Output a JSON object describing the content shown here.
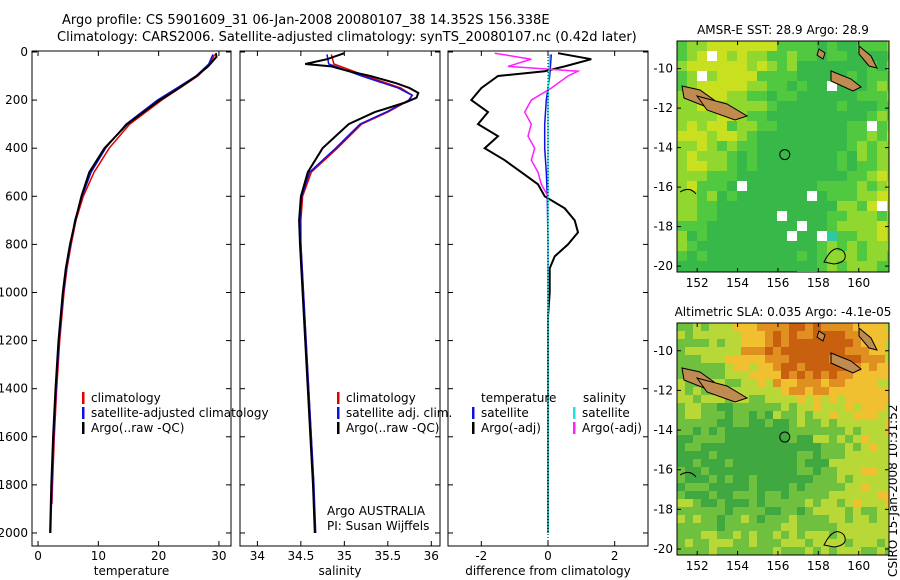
{
  "header": {
    "title_line1": "Argo profile: CS 5901609_31 06-Jan-2008 20080107_38 14.352S 156.338E",
    "title_line2": "Climatology: CARS2006. Satellite-adjusted climatology: synTS_20080107.nc (0.42d later)"
  },
  "footer": {
    "stamp": "CSIRO 15-Jan-2008 10:31:52"
  },
  "colors": {
    "climatology": "#e00000",
    "satellite": "#1010e0",
    "argo": "#000000",
    "salinity_satellite": "#20e0e0",
    "salinity_argo": "#ff20ff"
  },
  "chart_data": [
    {
      "type": "line",
      "xlabel": "temperature",
      "xlim": [
        -1,
        32
      ],
      "xticks": [
        0,
        10,
        20,
        30
      ],
      "ylim": [
        2050,
        0
      ],
      "yticks": [
        0,
        200,
        400,
        600,
        800,
        1000,
        1200,
        1400,
        1600,
        1800,
        2000
      ],
      "legend": [
        "climatology",
        "satellite-adjusted climatology",
        "Argo(..raw -QC)"
      ],
      "series": [
        {
          "name": "climatology",
          "color": "#e00000",
          "depth": [
            10,
            50,
            100,
            150,
            200,
            300,
            400,
            500,
            600,
            700,
            800,
            900,
            1000,
            1200,
            1400,
            1600,
            1800,
            1880
          ],
          "values": [
            29.3,
            28.5,
            26.5,
            23.5,
            20.5,
            15.2,
            11.8,
            9.3,
            7.5,
            6.3,
            5.5,
            4.8,
            4.3,
            3.6,
            3.1,
            2.7,
            2.4,
            2.3
          ]
        },
        {
          "name": "satellite-adjusted climatology",
          "color": "#1010e0",
          "depth": [
            10,
            50,
            100,
            150,
            200,
            300,
            400,
            500,
            600,
            700,
            800,
            900,
            1000,
            1200,
            1400,
            1600,
            1800,
            2000
          ],
          "values": [
            29.0,
            28.3,
            26.2,
            23.0,
            19.8,
            14.6,
            11.2,
            8.8,
            7.3,
            6.1,
            5.4,
            4.7,
            4.2,
            3.5,
            3.0,
            2.6,
            2.3,
            2.1
          ]
        },
        {
          "name": "Argo(..raw -QC)",
          "color": "#000000",
          "depth": [
            5,
            20,
            60,
            100,
            150,
            200,
            300,
            400,
            500,
            600,
            700,
            800,
            900,
            1000,
            1200,
            1400,
            1600,
            1800,
            2000
          ],
          "values": [
            29.5,
            29.6,
            28.2,
            26.3,
            23.4,
            20.2,
            14.8,
            11.0,
            8.5,
            7.2,
            6.2,
            5.3,
            4.6,
            4.1,
            3.4,
            2.9,
            2.5,
            2.2,
            2.0
          ]
        }
      ]
    },
    {
      "type": "line",
      "xlabel": "salinity",
      "xlim": [
        33.8,
        36.1
      ],
      "xticks": [
        34,
        34.5,
        35,
        35.5,
        36
      ],
      "ylim": [
        2050,
        0
      ],
      "legend": [
        "climatology",
        "satellite adj. clim.",
        "Argo(..raw -QC)"
      ],
      "annotations": [
        "Argo AUSTRALIA",
        "PI: Susan Wijffels"
      ],
      "series": [
        {
          "name": "climatology",
          "color": "#e00000",
          "depth": [
            10,
            50,
            100,
            150,
            180,
            200,
            250,
            300,
            400,
            500,
            600,
            700,
            800,
            1000,
            1200,
            1400,
            1600,
            1800
          ],
          "values": [
            34.85,
            34.88,
            35.25,
            35.65,
            35.78,
            35.75,
            35.5,
            35.2,
            34.92,
            34.62,
            34.52,
            34.5,
            34.5,
            34.53,
            34.56,
            34.59,
            34.62,
            34.65
          ]
        },
        {
          "name": "satellite adj. clim.",
          "color": "#1010e0",
          "depth": [
            10,
            50,
            100,
            150,
            180,
            200,
            250,
            300,
            400,
            500,
            600,
            700,
            800,
            1000,
            1200,
            1400,
            1600,
            1800,
            2000
          ],
          "values": [
            34.8,
            34.82,
            35.2,
            35.62,
            35.78,
            35.74,
            35.48,
            35.18,
            34.9,
            34.6,
            34.51,
            34.49,
            34.5,
            34.53,
            34.56,
            34.59,
            34.62,
            34.65,
            34.67
          ]
        },
        {
          "name": "Argo(..raw -QC)",
          "color": "#000000",
          "depth": [
            5,
            30,
            50,
            60,
            80,
            100,
            130,
            150,
            170,
            190,
            210,
            250,
            300,
            400,
            500,
            600,
            700,
            800,
            1000,
            1200,
            1400,
            1600,
            1800,
            2000
          ],
          "values": [
            35.0,
            34.8,
            34.55,
            34.85,
            35.05,
            35.3,
            35.6,
            35.75,
            35.85,
            35.83,
            35.7,
            35.35,
            35.05,
            34.75,
            34.58,
            34.5,
            34.48,
            34.49,
            34.52,
            34.55,
            34.58,
            34.61,
            34.64,
            34.66
          ]
        }
      ]
    },
    {
      "type": "line",
      "xlabel": "difference from climatology",
      "xlim": [
        -3,
        3
      ],
      "xticks": [
        -2,
        0,
        2
      ],
      "ylim": [
        2050,
        0
      ],
      "legend_left": {
        "title": "temperature",
        "items": [
          "satellite",
          "Argo(-adj)"
        ]
      },
      "legend_right": {
        "title": "salinity",
        "items": [
          "satellite",
          "Argo(-adj)"
        ]
      },
      "series": [
        {
          "name": "temperature satellite",
          "color": "#1010e0",
          "depth": [
            10,
            100,
            200,
            300,
            400,
            500,
            600,
            800,
            1000,
            2000
          ],
          "values": [
            0.1,
            0.05,
            -0.05,
            -0.1,
            -0.1,
            -0.05,
            -0.02,
            0,
            0,
            0
          ]
        },
        {
          "name": "temperature Argo(-adj)",
          "color": "#000000",
          "depth": [
            5,
            30,
            60,
            80,
            100,
            150,
            200,
            250,
            300,
            350,
            400,
            450,
            500,
            550,
            600,
            650,
            700,
            750,
            800,
            850,
            900,
            1000,
            1100,
            1200,
            1400,
            2000
          ],
          "values": [
            0.3,
            1.3,
            0.5,
            -0.1,
            -1.5,
            -2.0,
            -2.3,
            -1.8,
            -2.1,
            -1.5,
            -1.9,
            -1.3,
            -0.8,
            -0.3,
            -0.1,
            0.5,
            0.8,
            0.9,
            0.6,
            0.2,
            0.05,
            0.05,
            0.0,
            0.0,
            0.0,
            0.0
          ]
        },
        {
          "name": "salinity satellite",
          "color": "#20e0e0",
          "depth": [
            10,
            100,
            200,
            400,
            600,
            800,
            1000,
            1500,
            2000
          ],
          "values": [
            0.05,
            0.02,
            0,
            0,
            0,
            0,
            0,
            0,
            0
          ]
        },
        {
          "name": "salinity Argo(-adj)",
          "color": "#ff20ff",
          "depth": [
            5,
            30,
            60,
            80,
            100,
            150,
            200,
            250,
            300,
            350,
            400,
            450,
            500,
            550,
            600
          ],
          "values": [
            -1.6,
            -0.5,
            -1.2,
            0.9,
            0.6,
            0.1,
            -0.5,
            -0.7,
            -0.5,
            -0.6,
            -0.4,
            -0.5,
            -0.3,
            -0.2,
            0.0
          ]
        }
      ]
    },
    {
      "type": "heatmap",
      "title": "AMSR-E SST: 28.9 Argo: 28.9",
      "xticks": [
        152,
        154,
        156,
        158,
        160
      ],
      "yticks": [
        -10,
        -12,
        -14,
        -16,
        -18,
        -20
      ],
      "xlim": [
        151,
        161.5
      ],
      "ylim": [
        -20.3,
        -8.6
      ],
      "marker": {
        "lon": 156.338,
        "lat": -14.352
      }
    },
    {
      "type": "heatmap",
      "title": "Altimetric SLA: 0.035 Argo: -4.1e-05",
      "xticks": [
        152,
        154,
        156,
        158,
        160
      ],
      "yticks": [
        -10,
        -12,
        -14,
        -16,
        -18,
        -20
      ],
      "xlim": [
        151,
        161.5
      ],
      "ylim": [
        -20.3,
        -8.6
      ],
      "marker": {
        "lon": 156.338,
        "lat": -14.352
      }
    }
  ]
}
